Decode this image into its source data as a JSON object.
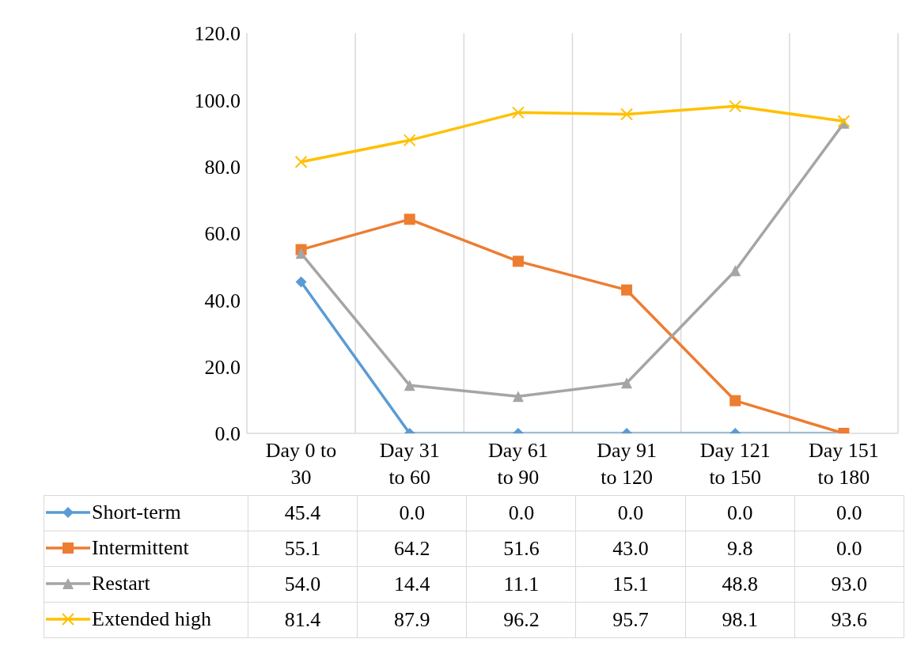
{
  "chart_data": {
    "type": "line",
    "categories": [
      "Day 0 to 30",
      "Day 31 to 60",
      "Day 61 to 90",
      "Day 91 to 120",
      "Day 121 to 150",
      "Day 151 to 180"
    ],
    "ylim": [
      0,
      120
    ],
    "yticks": [
      {
        "value": 0,
        "label": "0.0"
      },
      {
        "value": 20,
        "label": "20.0"
      },
      {
        "value": 40,
        "label": "40.0"
      },
      {
        "value": 60,
        "label": "60.0"
      },
      {
        "value": 80,
        "label": "80.0"
      },
      {
        "value": 100,
        "label": "100.0"
      },
      {
        "value": 120,
        "label": "120.0"
      }
    ],
    "grid": "x",
    "legend": "bottom",
    "line_style": "solid",
    "series": [
      {
        "name": "Short-term",
        "color": "#5b9bd5",
        "marker": "diamond",
        "values": [
          45.4,
          0,
          0,
          0,
          0,
          0
        ],
        "value_labels": [
          "45.4",
          "0.0",
          "0.0",
          "0.0",
          "0.0",
          "0.0"
        ]
      },
      {
        "name": "Intermittent",
        "color": "#ed7d31",
        "marker": "square",
        "values": [
          55.1,
          64.2,
          51.6,
          43.0,
          9.8,
          0
        ],
        "value_labels": [
          "55.1",
          "64.2",
          "51.6",
          "43.0",
          "9.8",
          "0.0"
        ]
      },
      {
        "name": "Restart",
        "color": "#a5a5a5",
        "marker": "triangle",
        "values": [
          54.0,
          14.4,
          11.1,
          15.1,
          48.8,
          93.0
        ],
        "value_labels": [
          "54.0",
          "14.4",
          "11.1",
          "15.1",
          "48.8",
          "93.0"
        ]
      },
      {
        "name": "Extended high",
        "color": "#ffc000",
        "marker": "cross",
        "values": [
          81.4,
          87.9,
          96.2,
          95.7,
          98.1,
          93.6
        ],
        "value_labels": [
          "81.4",
          "87.9",
          "96.2",
          "95.7",
          "98.1",
          "93.6"
        ]
      }
    ]
  }
}
